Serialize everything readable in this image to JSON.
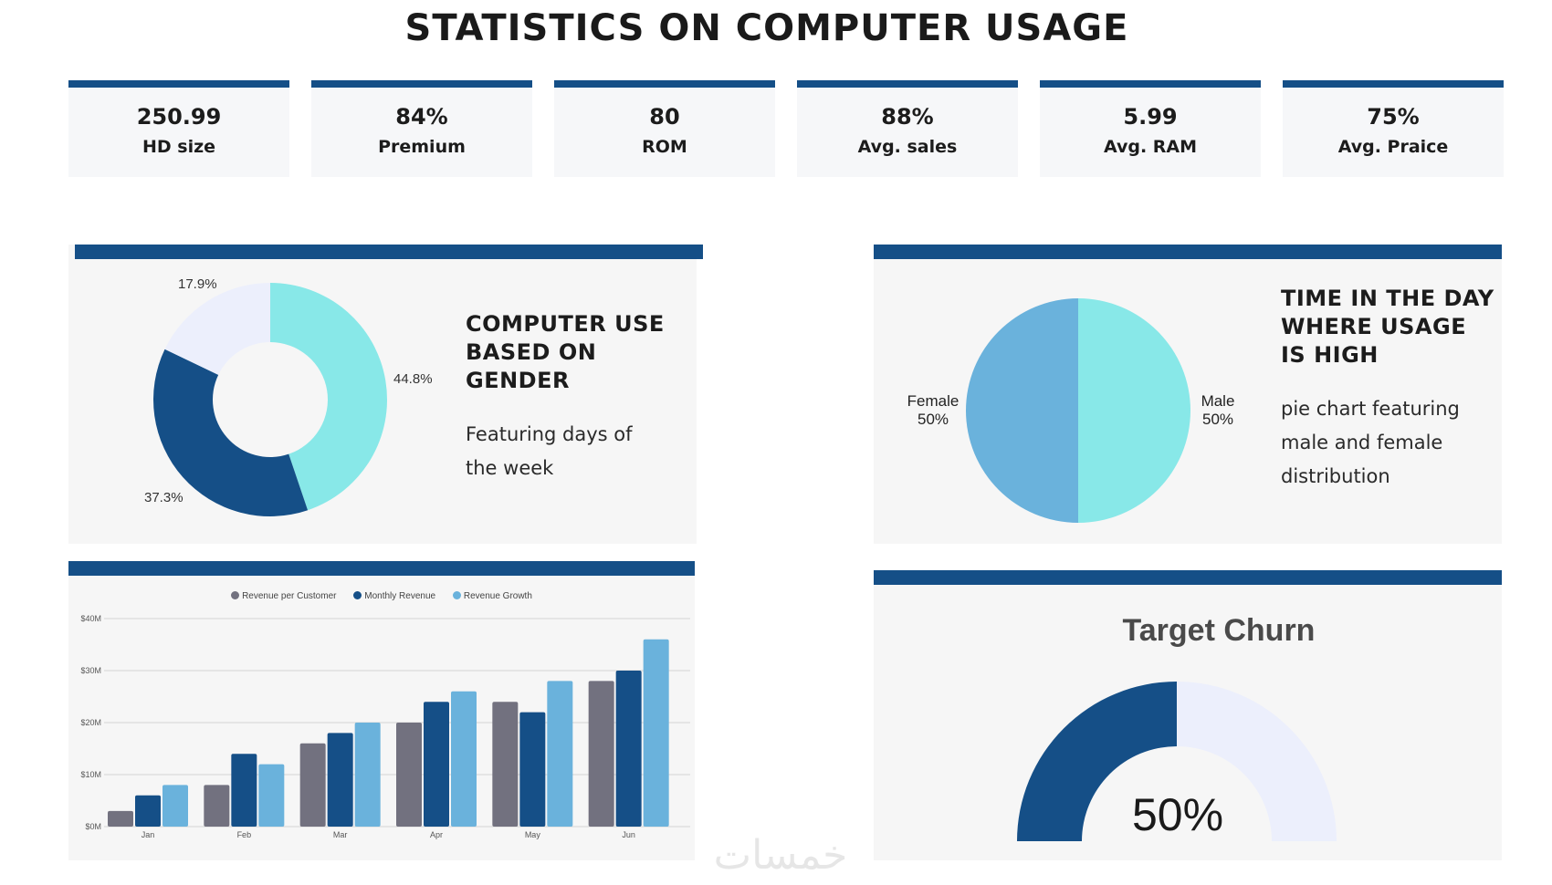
{
  "page_title": "STATISTICS ON COMPUTER USAGE",
  "colors": {
    "navy": "#154f87",
    "cyan": "#88e8e8",
    "light_lavender": "#eceffc",
    "sky": "#6ab2dc",
    "gray": "#72717f"
  },
  "kpis": [
    {
      "value": "250.99",
      "label": "HD size"
    },
    {
      "value": "84%",
      "label": "Premium"
    },
    {
      "value": "80",
      "label": "ROM"
    },
    {
      "value": "88%",
      "label": "Avg. sales"
    },
    {
      "value": "5.99",
      "label": "Avg. RAM"
    },
    {
      "value": "75%",
      "label": "Avg. Praice"
    }
  ],
  "donut_panel": {
    "title_lines": [
      "COMPUTER USE",
      "BASED ON",
      "GENDER"
    ],
    "description_lines": [
      "Featuring days of",
      "the week"
    ]
  },
  "pie_panel": {
    "title_lines": [
      "TIME IN THE DAY",
      "WHERE USAGE",
      "IS HIGH"
    ],
    "description_lines": [
      "pie chart featuring",
      "male and female",
      "distribution"
    ]
  },
  "churn_panel": {
    "title": "Target Churn",
    "value_label": "50%"
  },
  "chart_data": [
    {
      "type": "pie",
      "variant": "donut",
      "slices": [
        {
          "label": "44.8%",
          "value": 44.8,
          "color": "#88e8e8"
        },
        {
          "label": "37.3%",
          "value": 37.3,
          "color": "#154f87"
        },
        {
          "label": "17.9%",
          "value": 17.9,
          "color": "#eceffc"
        }
      ]
    },
    {
      "type": "pie",
      "slices": [
        {
          "label": "Male",
          "value": 50,
          "value_label": "50%",
          "color": "#88e8e8"
        },
        {
          "label": "Female",
          "value": 50,
          "value_label": "50%",
          "color": "#6ab2dc"
        }
      ]
    },
    {
      "type": "bar",
      "categories": [
        "Jan",
        "Feb",
        "Mar",
        "Apr",
        "May",
        "Jun"
      ],
      "series": [
        {
          "name": "Revenue per Customer",
          "color": "#72717f",
          "values": [
            3,
            8,
            16,
            20,
            24,
            28
          ]
        },
        {
          "name": "Monthly Revenue",
          "color": "#154f87",
          "values": [
            6,
            14,
            18,
            24,
            22,
            30
          ]
        },
        {
          "name": "Revenue Growth",
          "color": "#6ab2dc",
          "values": [
            8,
            12,
            20,
            26,
            28,
            36
          ]
        }
      ],
      "ylim": [
        0,
        40
      ],
      "y_ticks": [
        0,
        10,
        20,
        30,
        40
      ],
      "y_tick_labels": [
        "$0M",
        "$10M",
        "$20M",
        "$30M",
        "$40M"
      ],
      "grid": true,
      "legend_position": "top"
    },
    {
      "type": "gauge",
      "value": 50,
      "max": 100,
      "value_label": "50%",
      "title": "Target Churn"
    }
  ],
  "watermark_text": "خمسات"
}
